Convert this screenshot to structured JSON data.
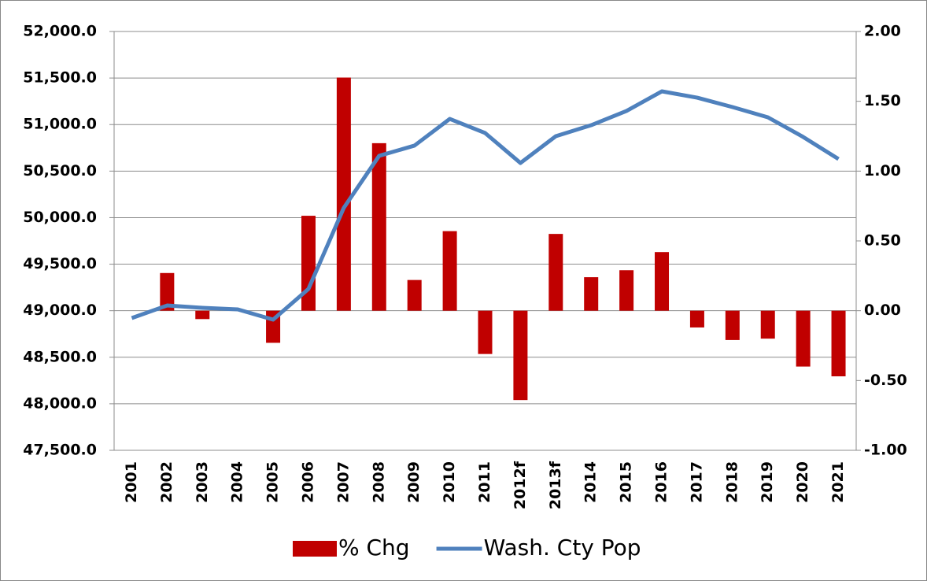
{
  "chart_data": {
    "type": "bar-line",
    "categories": [
      "2001",
      "2002",
      "2003",
      "2004",
      "2005",
      "2006",
      "2007",
      "2008",
      "2009",
      "2010",
      "2011",
      "2012f",
      "2013f",
      "2014",
      "2015",
      "2016",
      "2017",
      "2018",
      "2019",
      "2020",
      "2021"
    ],
    "series": [
      {
        "name": "% Chg",
        "type": "bar",
        "axis": "y2",
        "color": "#c00000",
        "values": [
          null,
          0.27,
          -0.06,
          null,
          -0.23,
          0.68,
          1.67,
          1.2,
          0.22,
          0.57,
          -0.31,
          -0.64,
          0.55,
          0.24,
          0.29,
          0.42,
          -0.12,
          -0.21,
          -0.2,
          -0.4,
          -0.47
        ]
      },
      {
        "name": "Wash. Cty Pop",
        "type": "line",
        "axis": "y",
        "color": "#4f81bd",
        "values": [
          48921,
          49056,
          49031,
          49014,
          48904,
          49234,
          50105,
          50664,
          50774,
          51061,
          50909,
          50587,
          50875,
          50993,
          51146,
          51357,
          51289,
          51188,
          51078,
          50867,
          50630
        ]
      }
    ],
    "ylim": [
      47500,
      52000
    ],
    "yticks": [
      {
        "value": 47500,
        "label": "47,500.0"
      },
      {
        "value": 48000,
        "label": "48,000.0"
      },
      {
        "value": 48500,
        "label": "48,500.0"
      },
      {
        "value": 49000,
        "label": "49,000.0"
      },
      {
        "value": 49500,
        "label": "49,500.0"
      },
      {
        "value": 50000,
        "label": "50,000.0"
      },
      {
        "value": 50500,
        "label": "50,500.0"
      },
      {
        "value": 51000,
        "label": "51,000.0"
      },
      {
        "value": 51500,
        "label": "51,500.0"
      },
      {
        "value": 52000,
        "label": "52,000.0"
      }
    ],
    "y2lim": [
      -1,
      2
    ],
    "y2ticks": [
      {
        "value": -1,
        "label": "-1.00"
      },
      {
        "value": -0.5,
        "label": "-0.50"
      },
      {
        "value": 0,
        "label": "0.00"
      },
      {
        "value": 0.5,
        "label": "0.50"
      },
      {
        "value": 1,
        "label": "1.00"
      },
      {
        "value": 1.5,
        "label": "1.50"
      },
      {
        "value": 2,
        "label": "2.00"
      }
    ],
    "grid": true,
    "legend": "bottom"
  }
}
